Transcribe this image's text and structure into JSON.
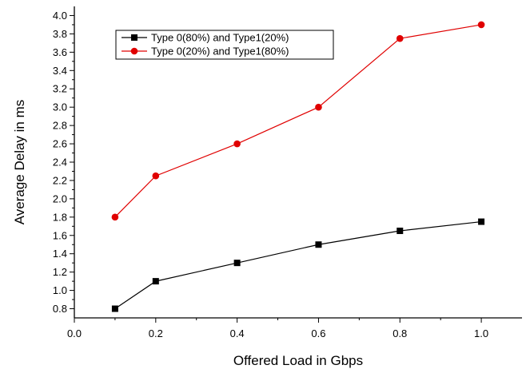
{
  "chart_data": {
    "type": "line",
    "xlabel": "Offered Load in Gbps",
    "ylabel": "Average Delay in ms",
    "xlim": [
      0.0,
      1.1
    ],
    "ylim": [
      0.7,
      4.1
    ],
    "xticks": [
      0.0,
      0.2,
      0.4,
      0.6,
      0.8,
      1.0
    ],
    "xtick_labels": [
      "0.0",
      "0.2",
      "0.4",
      "0.6",
      "0.8",
      "1.0"
    ],
    "yticks": [
      0.8,
      1.0,
      1.2,
      1.4,
      1.6,
      1.8,
      2.0,
      2.2,
      2.4,
      2.6,
      2.8,
      3.0,
      3.2,
      3.4,
      3.6,
      3.8,
      4.0
    ],
    "ytick_labels": [
      "0.8",
      "1.0",
      "1.2",
      "1.4",
      "1.6",
      "1.8",
      "2.0",
      "2.2",
      "2.4",
      "2.6",
      "2.8",
      "3.0",
      "3.2",
      "3.4",
      "3.6",
      "3.8",
      "4.0"
    ],
    "grid": false,
    "legend_position": "top-left",
    "x": [
      0.1,
      0.2,
      0.4,
      0.6,
      0.8,
      1.0
    ],
    "series": [
      {
        "name": "Type 0(80%) and Type1(20%)",
        "values": [
          0.8,
          1.1,
          1.3,
          1.5,
          1.65,
          1.75
        ],
        "color": "#000000",
        "marker": "square"
      },
      {
        "name": "Type 0(20%) and Type1(80%)",
        "values": [
          1.8,
          2.25,
          2.6,
          3.0,
          3.75,
          3.9
        ],
        "color": "#e00000",
        "marker": "circle"
      }
    ]
  }
}
